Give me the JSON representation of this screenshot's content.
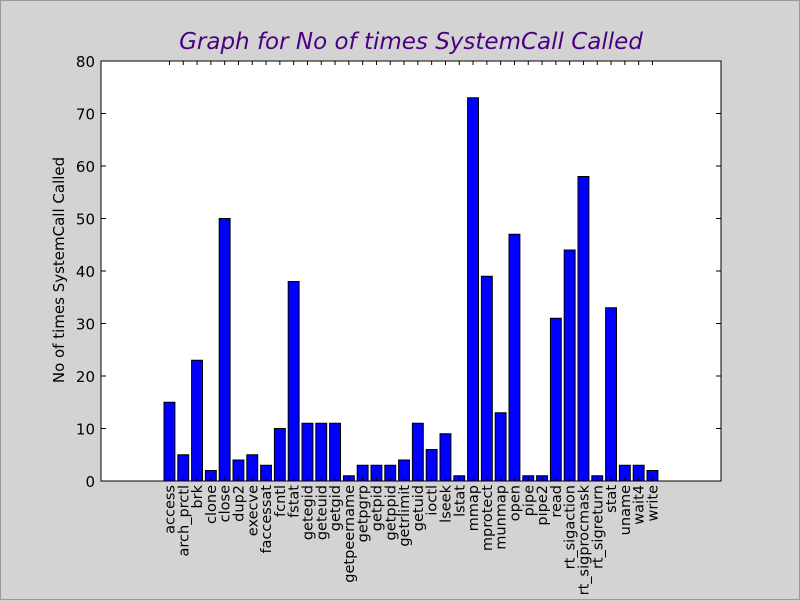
{
  "chart_data": {
    "type": "bar",
    "title": "Graph for No of times SystemCall Called",
    "xlabel": "",
    "ylabel": "No of times SystemCall Called",
    "ylim": [
      0,
      80
    ],
    "yticks": [
      0,
      10,
      20,
      30,
      40,
      50,
      60,
      70,
      80
    ],
    "grid": false,
    "categories": [
      "access",
      "arch_prctl",
      "brk",
      "clone",
      "close",
      "dup2",
      "execve",
      "faccessat",
      "fcntl",
      "fstat",
      "getegid",
      "geteuid",
      "getgid",
      "getpeername",
      "getpgrp",
      "getpid",
      "getppid",
      "getrlimit",
      "getuid",
      "ioctl",
      "lseek",
      "lstat",
      "mmap",
      "mprotect",
      "munmap",
      "open",
      "pipe",
      "pipe2",
      "read",
      "rt_sigaction",
      "rt_sigprocmask",
      "rt_sigreturn",
      "stat",
      "uname",
      "wait4",
      "write"
    ],
    "values": [
      15,
      5,
      23,
      2,
      50,
      4,
      5,
      3,
      10,
      38,
      11,
      11,
      11,
      1,
      3,
      3,
      3,
      4,
      11,
      6,
      9,
      1,
      73,
      39,
      13,
      47,
      1,
      1,
      31,
      44,
      58,
      1,
      33,
      3,
      3,
      2
    ],
    "colors": {
      "bar": "#0000ff",
      "edge": "#000000",
      "title": "#4b0082",
      "plot_bg": "#ffffff",
      "figure_bg": "#d3d3d3"
    }
  }
}
